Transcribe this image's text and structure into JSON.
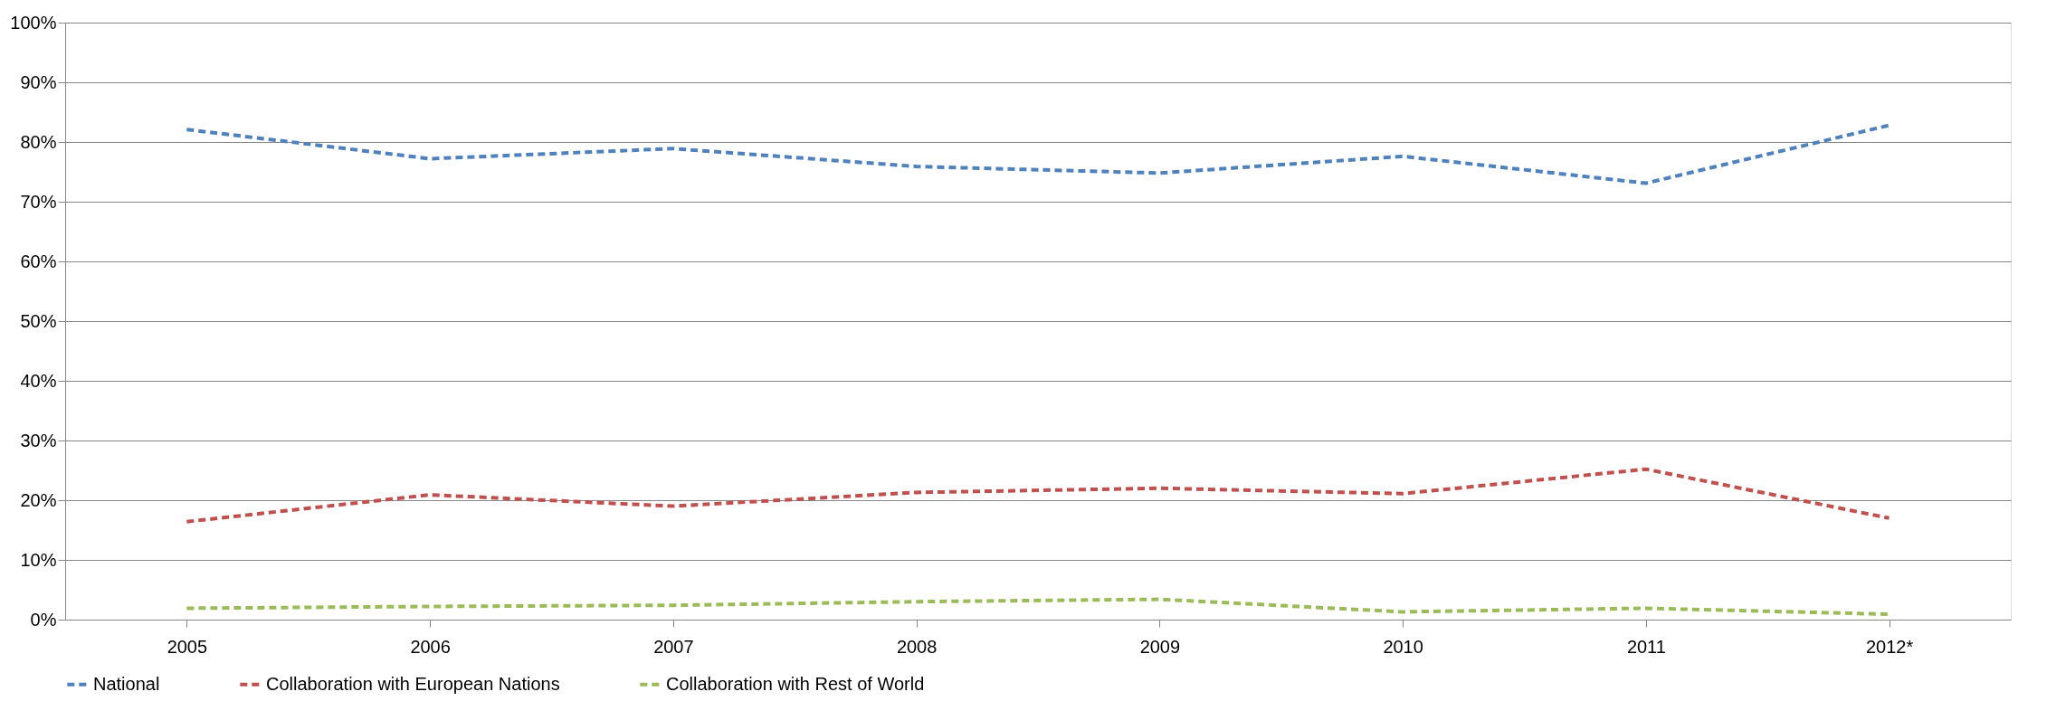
{
  "chart_data": {
    "type": "line",
    "categories": [
      "2005",
      "2006",
      "2007",
      "2008",
      "2009",
      "2010",
      "2011",
      "2012*"
    ],
    "series": [
      {
        "name": "National",
        "color": "#4f81bd",
        "values": [
          82.1,
          77.2,
          78.9,
          75.9,
          74.8,
          77.6,
          73.1,
          82.8
        ]
      },
      {
        "name": "Collaboration with European Nations",
        "color": "#c0504d",
        "values": [
          16.4,
          20.9,
          19.0,
          21.3,
          22.0,
          21.1,
          25.2,
          17.0
        ]
      },
      {
        "name": "Collaboration with Rest of World",
        "color": "#9bbb59",
        "values": [
          1.9,
          2.2,
          2.4,
          3.0,
          3.4,
          1.3,
          1.9,
          0.9
        ]
      }
    ],
    "ylim": [
      0,
      100
    ],
    "yticks": [
      {
        "value": 0,
        "label": "0%"
      },
      {
        "value": 10,
        "label": "10%"
      },
      {
        "value": 20,
        "label": "20%"
      },
      {
        "value": 30,
        "label": "30%"
      },
      {
        "value": 40,
        "label": "40%"
      },
      {
        "value": 50,
        "label": "50%"
      },
      {
        "value": 60,
        "label": "60%"
      },
      {
        "value": 70,
        "label": "70%"
      },
      {
        "value": 80,
        "label": "80%"
      },
      {
        "value": 90,
        "label": "90%"
      },
      {
        "value": 100,
        "label": "100%"
      }
    ],
    "grid": "y",
    "legend": "bottom",
    "line_style": "dashed",
    "marker": "none"
  }
}
